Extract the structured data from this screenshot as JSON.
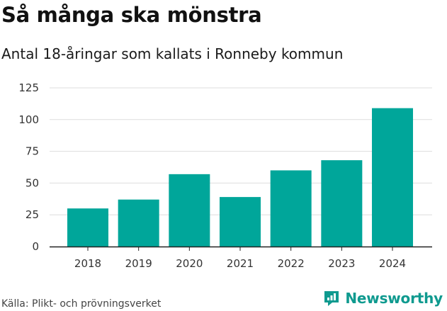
{
  "title": "Så många ska mönstra",
  "subtitle": "Antal 18-åringar som kallats i Ronneby kommun",
  "source": "Källa: Plikt- och prövningsverket",
  "brand": {
    "name": "Newsworthy",
    "color": "#0f9a8f"
  },
  "colors": {
    "bar": "#00a69a",
    "grid": "#dddddd",
    "axis": "#222222"
  },
  "chart_data": {
    "type": "bar",
    "title": "Så många ska mönstra",
    "subtitle": "Antal 18-åringar som kallats i Ronneby kommun",
    "xlabel": "",
    "ylabel": "",
    "categories": [
      "2018",
      "2019",
      "2020",
      "2021",
      "2022",
      "2023",
      "2024"
    ],
    "values": [
      30,
      37,
      57,
      39,
      60,
      68,
      109
    ],
    "ylim": [
      0,
      125
    ],
    "yticks": [
      0,
      25,
      50,
      75,
      100,
      125
    ],
    "grid": true
  }
}
